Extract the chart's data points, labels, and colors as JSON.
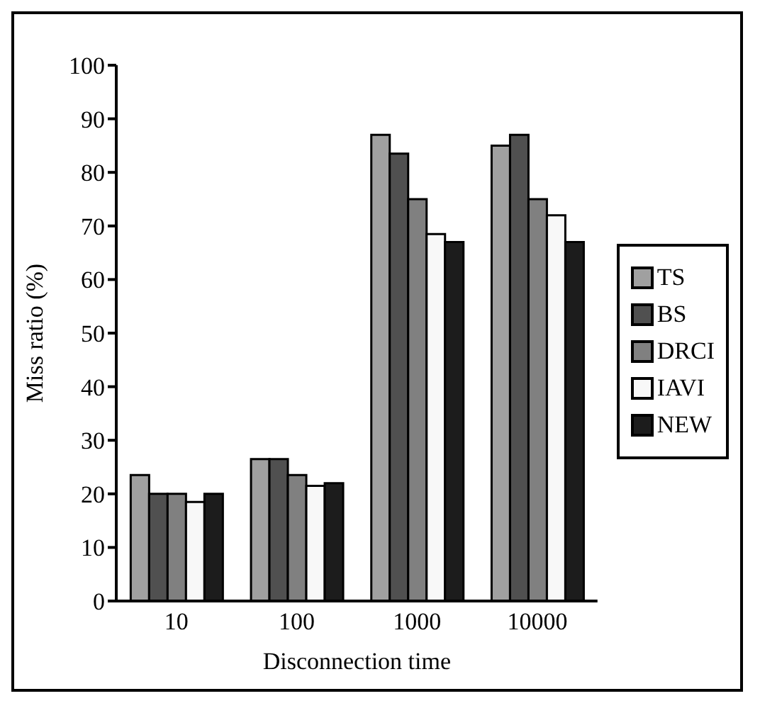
{
  "chart_data": {
    "type": "bar",
    "xlabel": "Disconnection time",
    "ylabel": "Miss ratio (%)",
    "categories": [
      "10",
      "100",
      "1000",
      "10000"
    ],
    "series": [
      {
        "name": "TS",
        "color": "#a0a0a0",
        "values": [
          23.5,
          26.5,
          87,
          85
        ]
      },
      {
        "name": "BS",
        "color": "#505050",
        "values": [
          20,
          26.5,
          83.5,
          87
        ]
      },
      {
        "name": "DRCI",
        "color": "#808080",
        "values": [
          20,
          23.5,
          75,
          75
        ]
      },
      {
        "name": "IAVI",
        "color": "#f8f8f8",
        "values": [
          18.5,
          21.5,
          68.5,
          72
        ]
      },
      {
        "name": "NEW",
        "color": "#1c1c1c",
        "values": [
          20,
          22,
          67,
          67
        ]
      }
    ],
    "ylim": [
      0,
      100
    ],
    "yticks": [
      0,
      10,
      20,
      30,
      40,
      50,
      60,
      70,
      80,
      90,
      100
    ],
    "legend": "right",
    "grid": false
  }
}
